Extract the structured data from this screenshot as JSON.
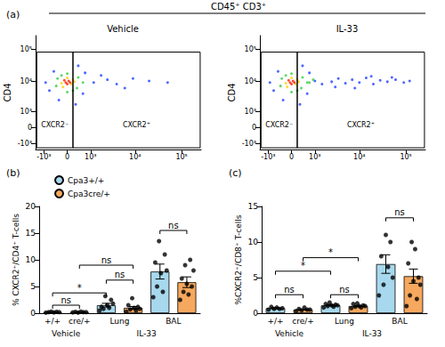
{
  "header": "CD45⁺ CD3⁺",
  "chart_data": [
    {
      "type": "scatter",
      "panel": "(a)",
      "title": "Vehicle",
      "ylabel": "CD4",
      "xlim": [
        -1600,
        262144
      ],
      "xticks": [
        {
          "value": -1000,
          "label": "-10³"
        },
        0,
        {
          "value": 1000,
          "label": "10³"
        },
        {
          "value": 10000,
          "label": "10⁴"
        },
        {
          "value": 100000,
          "label": "10⁵"
        }
      ],
      "ylim": [
        -1600,
        262144
      ],
      "yticks": [
        {
          "value": -1000,
          "label": "-10³"
        },
        0,
        {
          "value": 1000,
          "label": "10³"
        },
        {
          "value": 10000,
          "label": "10⁴"
        },
        {
          "value": 100000,
          "label": "10⁵"
        }
      ],
      "gates": [
        {
          "label": "CXCR2⁻",
          "x": [
            -1500,
            200
          ],
          "y": [
            -1400,
            80000
          ]
        },
        {
          "label": "CXCR2⁺",
          "x": [
            200,
            250000
          ],
          "y": [
            -1400,
            80000
          ]
        }
      ],
      "series": [
        {
          "color": "#2040ff",
          "values": [
            [
              -700,
              5000
            ],
            [
              -500,
              20000
            ],
            [
              600,
              4000
            ],
            [
              700,
              18000
            ],
            [
              -300,
              2500
            ],
            [
              400,
              30000
            ],
            [
              1200,
              9000
            ],
            [
              2500,
              11000
            ],
            [
              4000,
              8000
            ],
            [
              9000,
              12000
            ],
            [
              20000,
              10000
            ],
            [
              50000,
              9000
            ],
            [
              1800,
              15000
            ],
            [
              -900,
              9000
            ],
            [
              300,
              1800
            ],
            [
              6000,
              6000
            ]
          ]
        },
        {
          "color": "#30d040",
          "values": [
            [
              -400,
              7000
            ],
            [
              -350,
              12000
            ],
            [
              350,
              6000
            ],
            [
              400,
              13000
            ],
            [
              0,
              4500
            ],
            [
              0,
              17000
            ],
            [
              -200,
              15000
            ],
            [
              200,
              5000
            ],
            [
              600,
              9000
            ]
          ]
        },
        {
          "color": "#ffd000",
          "values": [
            [
              -200,
              8500
            ],
            [
              200,
              11000
            ],
            [
              -150,
              6500
            ],
            [
              150,
              8000
            ],
            [
              0,
              12500
            ],
            [
              250,
              9500
            ]
          ]
        },
        {
          "color": "#ff2000",
          "values": [
            [
              -50,
              9000
            ],
            [
              50,
              10000
            ],
            [
              0,
              8000
            ],
            [
              -100,
              10500
            ],
            [
              100,
              9000
            ]
          ]
        }
      ]
    },
    {
      "type": "scatter",
      "title": "IL-33",
      "ylabel": "CD4",
      "xlim": [
        -1600,
        262144
      ],
      "xticks": [
        {
          "value": -1000,
          "label": "-10³"
        },
        0,
        {
          "value": 1000,
          "label": "10³"
        },
        {
          "value": 10000,
          "label": "10⁴"
        },
        {
          "value": 100000,
          "label": "10⁵"
        }
      ],
      "ylim": [
        -1600,
        262144
      ],
      "yticks": [
        {
          "value": -1000,
          "label": "-10³"
        },
        0,
        {
          "value": 1000,
          "label": "10³"
        },
        {
          "value": 10000,
          "label": "10⁴"
        },
        {
          "value": 100000,
          "label": "10⁵"
        }
      ],
      "gates": [
        {
          "label": "CXCR2⁻",
          "x": [
            -1500,
            200
          ],
          "y": [
            -1400,
            80000
          ]
        },
        {
          "label": "CXCR2⁺",
          "x": [
            200,
            250000
          ],
          "y": [
            -1400,
            80000
          ]
        }
      ],
      "series": [
        {
          "color": "#2040ff",
          "values": [
            [
              -700,
              5000
            ],
            [
              -500,
              20000
            ],
            [
              600,
              4000
            ],
            [
              700,
              18000
            ],
            [
              -300,
              2500
            ],
            [
              400,
              30000
            ],
            [
              -900,
              9000
            ],
            [
              300,
              1800
            ],
            [
              1000,
              10000
            ],
            [
              1500,
              8000
            ],
            [
              2500,
              9500
            ],
            [
              3500,
              12000
            ],
            [
              5000,
              8500
            ],
            [
              7000,
              11000
            ],
            [
              10000,
              9000
            ],
            [
              14000,
              12500
            ],
            [
              20000,
              8000
            ],
            [
              28000,
              10500
            ],
            [
              40000,
              9500
            ],
            [
              60000,
              11000
            ],
            [
              90000,
              9000
            ],
            [
              8000,
              6000
            ],
            [
              18000,
              14000
            ],
            [
              3000,
              6500
            ],
            [
              50000,
              13000
            ],
            [
              120000,
              10000
            ]
          ]
        },
        {
          "color": "#30d040",
          "values": [
            [
              -400,
              7000
            ],
            [
              -350,
              12000
            ],
            [
              350,
              6000
            ],
            [
              400,
              13000
            ],
            [
              0,
              4500
            ],
            [
              0,
              17000
            ],
            [
              -200,
              15000
            ],
            [
              200,
              5000
            ],
            [
              600,
              9000
            ],
            [
              700,
              9000
            ],
            [
              900,
              11000
            ]
          ]
        },
        {
          "color": "#ffd000",
          "values": [
            [
              -200,
              8500
            ],
            [
              200,
              11000
            ],
            [
              -150,
              6500
            ],
            [
              150,
              8000
            ],
            [
              0,
              12500
            ],
            [
              250,
              9500
            ]
          ]
        },
        {
          "color": "#ff2000",
          "values": [
            [
              -50,
              9000
            ],
            [
              50,
              10000
            ],
            [
              0,
              8000
            ],
            [
              -100,
              10500
            ],
            [
              100,
              9000
            ]
          ]
        }
      ]
    },
    {
      "type": "bar",
      "panel": "(b)",
      "ylabel": "% CXCR2⁺/CD4⁺ T-cells",
      "legend": "top-left",
      "categories": [
        "+/+",
        "cre/+",
        "Lung",
        "Lung",
        "BAL",
        "BAL"
      ],
      "groups": [
        "Vehicle",
        "Vehicle",
        "IL-33",
        "IL-33",
        "IL-33",
        "IL-33"
      ],
      "ylim": [
        0,
        20
      ],
      "yticks": [
        0,
        5,
        10,
        15,
        20
      ],
      "series": [
        {
          "name": "Cpa3+/+",
          "color": "#a7d8ed",
          "values": [
            0.2,
            null,
            1.5,
            null,
            7.8,
            null
          ],
          "errors": [
            0.05,
            null,
            0.35,
            null,
            1.4,
            null
          ],
          "points": [
            [
              0.1,
              0.2,
              0.3,
              0.15,
              0.25,
              0.2
            ],
            null,
            [
              0.5,
              1.2,
              0.8,
              3.2,
              1.5,
              1.0,
              2.5,
              1.8
            ],
            null,
            [
              3.0,
              9.5,
              5.0,
              13.5,
              7.5,
              4.0,
              11.0,
              8.0
            ],
            null
          ]
        },
        {
          "name": "Cpa3cre/+",
          "color": "#f6a85e",
          "values": [
            null,
            0.2,
            null,
            1.0,
            null,
            5.8
          ],
          "errors": [
            null,
            0.05,
            null,
            0.25,
            null,
            1.0
          ],
          "points": [
            null,
            [
              0.15,
              0.25,
              0.1,
              0.3,
              0.2,
              0.2
            ],
            null,
            [
              0.3,
              1.5,
              0.7,
              2.8,
              1.0,
              0.5,
              1.2,
              0.8
            ],
            null,
            [
              2.5,
              6.5,
              4.0,
              9.0,
              5.5,
              3.5,
              10.0,
              5.0,
              8.0
            ]
          ]
        }
      ],
      "comparisons": [
        {
          "from": 0,
          "to": 1,
          "y": 1.5,
          "label": "ns"
        },
        {
          "from": 0,
          "to": 2,
          "y": 3.8,
          "label": "*"
        },
        {
          "from": 2,
          "to": 3,
          "y": 6.2,
          "label": "ns"
        },
        {
          "from": 1,
          "to": 3,
          "y": 9.0,
          "label": "ns"
        },
        {
          "from": 4,
          "to": 5,
          "y": 15.5,
          "label": "ns"
        }
      ]
    },
    {
      "type": "bar",
      "panel": "(c)",
      "ylabel": "%CXCR2⁺/CD8⁺ T-cells",
      "categories": [
        "+/+",
        "cre/+",
        "Lung",
        "Lung",
        "BAL",
        "BAL"
      ],
      "groups": [
        "Vehicle",
        "Vehicle",
        "IL-33",
        "IL-33",
        "IL-33",
        "IL-33"
      ],
      "ylim": [
        0,
        15
      ],
      "yticks": [
        0,
        5,
        10,
        15
      ],
      "series": [
        {
          "name": "Cpa3+/+",
          "color": "#a7d8ed",
          "values": [
            0.7,
            null,
            1.1,
            null,
            6.9,
            null
          ],
          "errors": [
            0.08,
            null,
            0.08,
            null,
            1.3,
            null
          ],
          "points": [
            [
              0.5,
              0.9,
              0.6,
              0.8,
              0.6,
              0.7
            ],
            null,
            [
              0.8,
              1.3,
              1.0,
              1.5,
              1.1,
              0.9,
              1.2,
              1.1
            ],
            null,
            [
              2.5,
              8.0,
              4.0,
              11.0,
              6.5,
              10.0,
              5.0
            ],
            null
          ]
        },
        {
          "name": "Cpa3cre/+",
          "color": "#f6a85e",
          "values": [
            null,
            0.5,
            null,
            1.0,
            null,
            5.2
          ],
          "errors": [
            null,
            0.07,
            null,
            0.08,
            null,
            1.0
          ],
          "points": [
            null,
            [
              0.3,
              0.6,
              0.4,
              0.8,
              0.5,
              0.5
            ],
            null,
            [
              0.7,
              1.3,
              0.9,
              1.4,
              1.0,
              0.8,
              1.1,
              1.0
            ],
            null,
            [
              1.0,
              7.0,
              2.5,
              10.0,
              4.5,
              9.0,
              2.0,
              5.0,
              4.0
            ]
          ]
        }
      ],
      "comparisons": [
        {
          "from": 0,
          "to": 1,
          "y": 2.6,
          "label": "ns"
        },
        {
          "from": 2,
          "to": 3,
          "y": 2.6,
          "label": "ns"
        },
        {
          "from": 0,
          "to": 2,
          "y": 5.9,
          "label": "*"
        },
        {
          "from": 1,
          "to": 3,
          "y": 7.8,
          "label": "*"
        },
        {
          "from": 4,
          "to": 5,
          "y": 13.4,
          "label": "ns"
        }
      ]
    }
  ]
}
